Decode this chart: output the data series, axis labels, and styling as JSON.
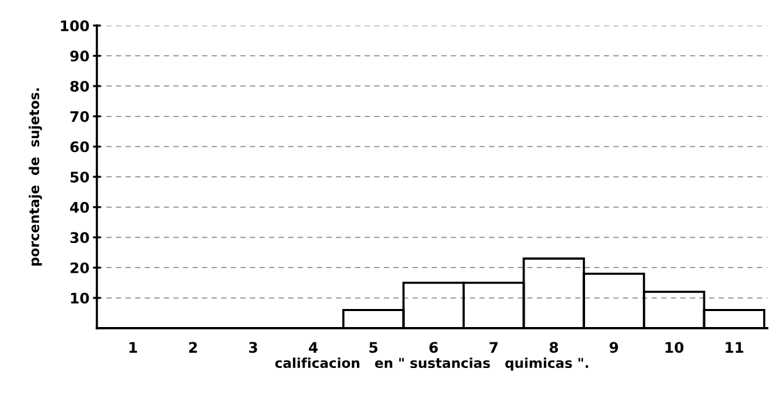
{
  "chart_data": {
    "type": "bar",
    "xlabel": "calificacion   en \" sustancias   quimicas \".",
    "ylabel": "porcentaje  de  sujetos.",
    "categories": [
      "1",
      "2",
      "3",
      "4",
      "5",
      "6",
      "7",
      "8",
      "9",
      "10",
      "11"
    ],
    "values": [
      0,
      0,
      0,
      0,
      6,
      15,
      15,
      23,
      18,
      12,
      6
    ],
    "color": "#000000",
    "ylim": [
      0,
      100
    ],
    "yticks": [
      10,
      20,
      30,
      40,
      50,
      60,
      70,
      80,
      90,
      100
    ],
    "grid": "y"
  }
}
